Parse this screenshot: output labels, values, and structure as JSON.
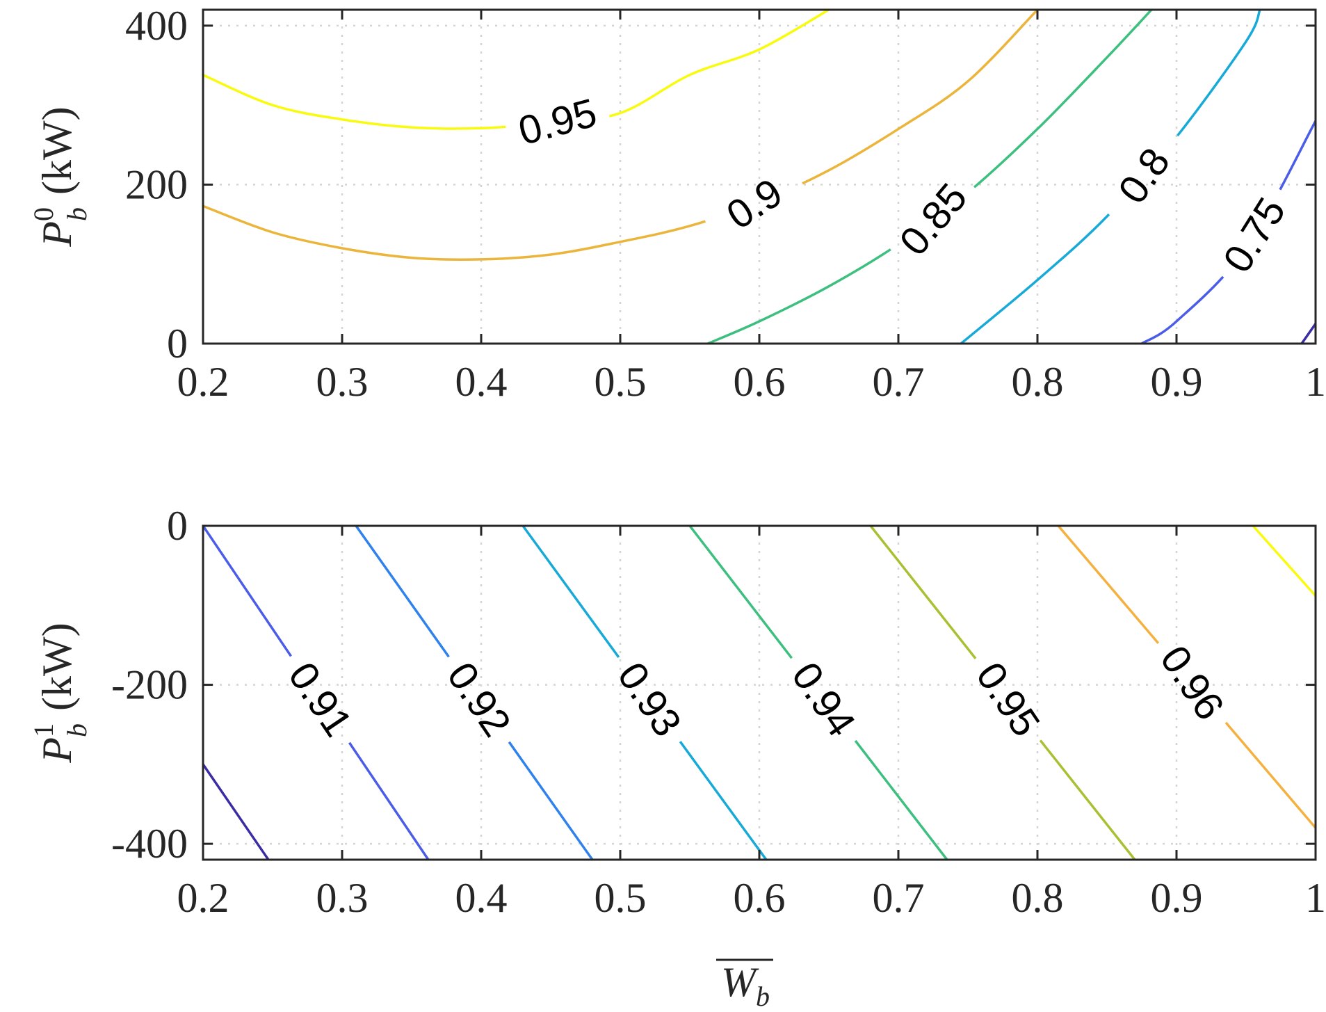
{
  "chart_data": [
    {
      "type": "contour",
      "title": "",
      "xlabel": "",
      "ylabel": "P_b^0 (kW)",
      "ylabel_parts": {
        "symbol": "P",
        "sub": "b",
        "sup": "0",
        "unit": "(kW)"
      },
      "xlim": [
        0.2,
        1.0
      ],
      "ylim": [
        0,
        420
      ],
      "xticks": [
        "0.2",
        "0.3",
        "0.4",
        "0.5",
        "0.6",
        "0.7",
        "0.8",
        "0.9",
        "1"
      ],
      "yticks": [
        "0",
        "200",
        "400"
      ],
      "xtick_values": [
        0.2,
        0.3,
        0.4,
        0.5,
        0.6,
        0.7,
        0.8,
        0.9,
        1.0
      ],
      "ytick_values": [
        0,
        200,
        400
      ],
      "grid": true,
      "levels": [
        {
          "label": "0.95",
          "color": "#f9fb0e",
          "x": [
            0.2,
            0.25,
            0.3,
            0.35,
            0.4,
            0.45,
            0.5,
            0.55,
            0.6,
            0.65
          ],
          "y": [
            338,
            300,
            282,
            272,
            271,
            278,
            290,
            338,
            370,
            420
          ]
        },
        {
          "label": "0.9",
          "color": "#ebb43a",
          "x": [
            0.2,
            0.25,
            0.3,
            0.35,
            0.4,
            0.45,
            0.5,
            0.55,
            0.6,
            0.65,
            0.7,
            0.75,
            0.8
          ],
          "y": [
            173,
            140,
            120,
            108,
            106,
            112,
            128,
            148,
            178,
            218,
            270,
            330,
            420
          ]
        },
        {
          "label": "0.85",
          "color": "#3dbf7f",
          "x": [
            0.563,
            0.6,
            0.65,
            0.7,
            0.75,
            0.8,
            0.85,
            0.882
          ],
          "y": [
            0,
            28,
            72,
            125,
            190,
            270,
            360,
            420
          ]
        },
        {
          "label": "0.8",
          "color": "#17aad8",
          "x": [
            0.745,
            0.8,
            0.85,
            0.9,
            0.95,
            0.96
          ],
          "y": [
            0,
            80,
            160,
            260,
            380,
            420
          ]
        },
        {
          "label": "0.75",
          "color": "#4b5de8",
          "x": [
            0.875,
            0.9,
            0.95,
            1.0
          ],
          "y": [
            0,
            28,
            120,
            280
          ]
        },
        {
          "label": "",
          "color": "#3a2ca3",
          "x": [
            0.99,
            1.0
          ],
          "y": [
            0,
            25
          ]
        }
      ]
    },
    {
      "type": "contour",
      "title": "",
      "xlabel": "W̄_b",
      "xlabel_parts": {
        "symbol": "W",
        "sub": "b",
        "overline": true
      },
      "ylabel": "P_b^1 (kW)",
      "ylabel_parts": {
        "symbol": "P",
        "sub": "b",
        "sup": "1",
        "unit": "(kW)"
      },
      "xlim": [
        0.2,
        1.0
      ],
      "ylim": [
        -420,
        0
      ],
      "xticks": [
        "0.2",
        "0.3",
        "0.4",
        "0.5",
        "0.6",
        "0.7",
        "0.8",
        "0.9",
        "1"
      ],
      "yticks": [
        "-400",
        "-200",
        "0"
      ],
      "xtick_values": [
        0.2,
        0.3,
        0.4,
        0.5,
        0.6,
        0.7,
        0.8,
        0.9,
        1.0
      ],
      "ytick_values": [
        -400,
        -200,
        0
      ],
      "grid": true,
      "levels": [
        {
          "label": "",
          "color": "#3a2ca3",
          "x": [
            0.2,
            0.247
          ],
          "y": [
            -300,
            -420
          ]
        },
        {
          "label": "0.91",
          "color": "#4b5de8",
          "x": [
            0.2,
            0.362
          ],
          "y": [
            0,
            -420
          ]
        },
        {
          "label": "0.92",
          "color": "#2f82ed",
          "x": [
            0.31,
            0.48
          ],
          "y": [
            0,
            -420
          ]
        },
        {
          "label": "0.93",
          "color": "#17aad8",
          "x": [
            0.43,
            0.605
          ],
          "y": [
            0,
            -420
          ]
        },
        {
          "label": "0.94",
          "color": "#3dbf7f",
          "x": [
            0.55,
            0.735
          ],
          "y": [
            0,
            -420
          ]
        },
        {
          "label": "0.95",
          "color": "#a8c032",
          "x": [
            0.68,
            0.87
          ],
          "y": [
            0,
            -420
          ]
        },
        {
          "label": "0.96",
          "color": "#f5b13f",
          "x": [
            0.815,
            1.0
          ],
          "y": [
            0,
            -380
          ]
        },
        {
          "label": "",
          "color": "#f9fb0e",
          "x": [
            0.955,
            1.0
          ],
          "y": [
            0,
            -88
          ]
        }
      ]
    }
  ]
}
